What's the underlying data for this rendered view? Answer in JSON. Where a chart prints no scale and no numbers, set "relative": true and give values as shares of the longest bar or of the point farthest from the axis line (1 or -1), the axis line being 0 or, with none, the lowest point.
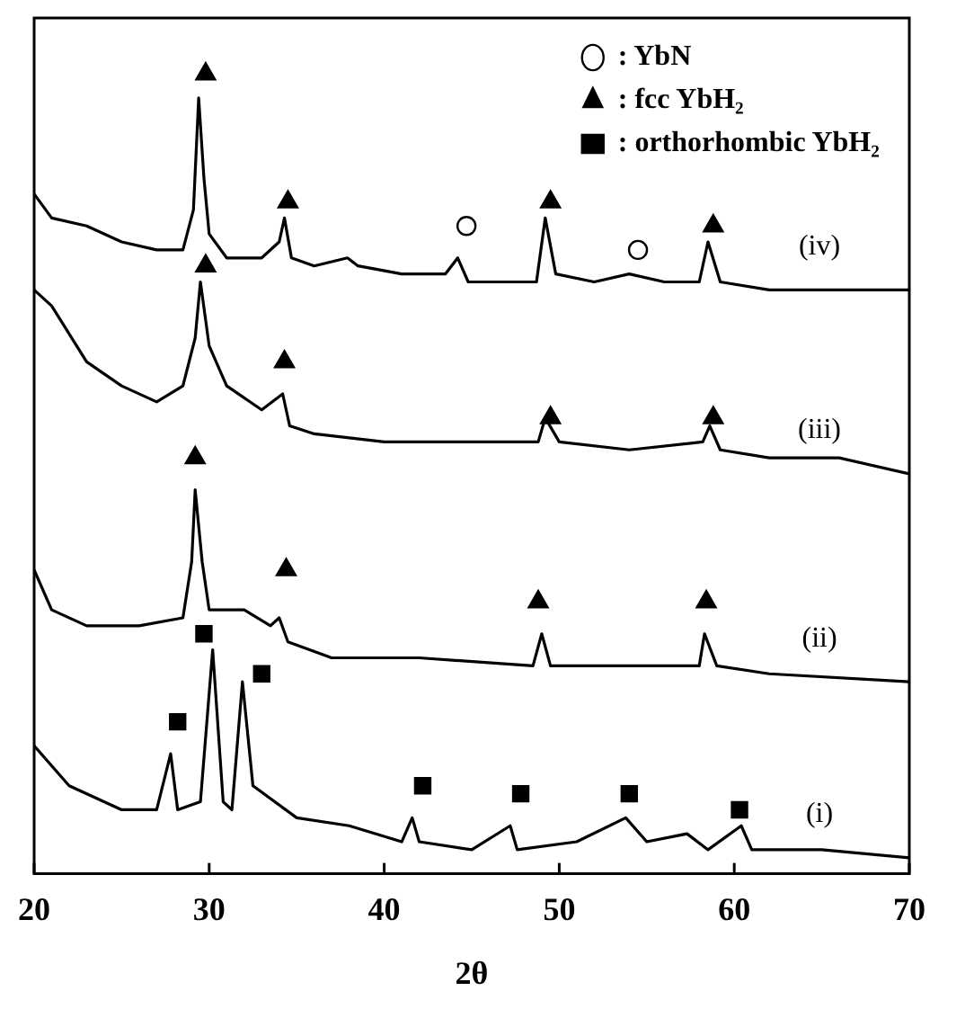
{
  "chart_data": {
    "type": "line",
    "xlabel": "2θ",
    "xlim": [
      20,
      70
    ],
    "xticks": [
      20,
      30,
      40,
      50,
      60,
      70
    ],
    "relative": true,
    "legend": "top right",
    "grid": false,
    "marker": "none",
    "series": [
      {
        "name": "(iv)",
        "color": "#000000",
        "x": [
          20,
          21,
          23,
          25,
          27,
          28.5,
          29.1,
          29.4,
          29.7,
          30,
          31,
          33,
          34,
          34.3,
          34.7,
          36,
          37.9,
          38.5,
          41,
          43.5,
          44.2,
          44.8,
          47,
          48.7,
          49.2,
          49.8,
          52,
          54,
          56,
          58,
          58.5,
          59.2,
          62,
          66,
          70
        ],
        "values": [
          0.85,
          0.82,
          0.81,
          0.79,
          0.78,
          0.78,
          0.83,
          0.97,
          0.87,
          0.8,
          0.77,
          0.77,
          0.79,
          0.82,
          0.77,
          0.76,
          0.77,
          0.76,
          0.75,
          0.75,
          0.77,
          0.74,
          0.74,
          0.74,
          0.82,
          0.75,
          0.74,
          0.75,
          0.74,
          0.74,
          0.79,
          0.74,
          0.73,
          0.73,
          0.73
        ]
      },
      {
        "name": "(iii)",
        "color": "#000000",
        "x": [
          20,
          21,
          23,
          25,
          27,
          28.5,
          29.2,
          29.5,
          30,
          31,
          33,
          34.2,
          34.6,
          36,
          40,
          45,
          48.8,
          49.2,
          50,
          54,
          58.2,
          58.6,
          59.2,
          62,
          66,
          70
        ],
        "values": [
          0.73,
          0.71,
          0.64,
          0.61,
          0.59,
          0.61,
          0.67,
          0.74,
          0.66,
          0.61,
          0.58,
          0.6,
          0.56,
          0.55,
          0.54,
          0.54,
          0.54,
          0.57,
          0.54,
          0.53,
          0.54,
          0.56,
          0.53,
          0.52,
          0.52,
          0.5
        ]
      },
      {
        "name": "(ii)",
        "color": "#000000",
        "x": [
          20,
          21,
          23,
          26,
          28.5,
          29,
          29.2,
          29.6,
          30,
          32,
          33.5,
          34,
          34.5,
          37,
          42,
          48.5,
          49,
          49.5,
          54,
          58,
          58.3,
          59,
          62,
          70
        ],
        "values": [
          0.38,
          0.33,
          0.31,
          0.31,
          0.32,
          0.39,
          0.48,
          0.39,
          0.33,
          0.33,
          0.31,
          0.32,
          0.29,
          0.27,
          0.27,
          0.26,
          0.3,
          0.26,
          0.26,
          0.26,
          0.3,
          0.26,
          0.25,
          0.24
        ]
      },
      {
        "name": "(i)",
        "color": "#000000",
        "x": [
          20,
          22,
          25,
          27,
          27.8,
          28.2,
          29.5,
          30.2,
          30.8,
          31.3,
          31.9,
          32.5,
          35,
          38,
          41,
          41.6,
          42,
          45,
          47.2,
          47.6,
          51,
          53.8,
          55,
          57.3,
          58.5,
          60.4,
          61,
          65,
          70
        ],
        "values": [
          0.16,
          0.11,
          0.08,
          0.08,
          0.15,
          0.08,
          0.09,
          0.28,
          0.09,
          0.08,
          0.24,
          0.11,
          0.07,
          0.06,
          0.04,
          0.07,
          0.04,
          0.03,
          0.06,
          0.03,
          0.04,
          0.07,
          0.04,
          0.05,
          0.03,
          0.06,
          0.03,
          0.03,
          0.02
        ]
      },
      {
        "name": ": YbN",
        "type": "scatter",
        "marker": "circle",
        "color": "#000000",
        "x": [
          44.7,
          54.5
        ],
        "values": [
          0.81,
          0.78
        ]
      },
      {
        "name": ": fcc YbH₂",
        "type": "scatter",
        "marker": "triangle",
        "color": "#000000",
        "x": [
          29.8,
          34.5,
          49.5,
          58.8,
          29.8,
          34.3,
          49.5,
          58.8,
          29.2,
          34.4,
          48.8,
          58.4
        ],
        "values": [
          1.0,
          0.84,
          0.84,
          0.81,
          0.76,
          0.64,
          0.57,
          0.57,
          0.52,
          0.38,
          0.34,
          0.34
        ]
      },
      {
        "name": ": orthorhombic YbH₂",
        "type": "scatter",
        "marker": "square",
        "color": "#000000",
        "x": [
          29.7,
          33.0,
          28.2,
          42.2,
          47.8,
          54.0,
          60.3
        ],
        "values": [
          0.3,
          0.25,
          0.19,
          0.11,
          0.1,
          0.1,
          0.08
        ]
      }
    ]
  }
}
